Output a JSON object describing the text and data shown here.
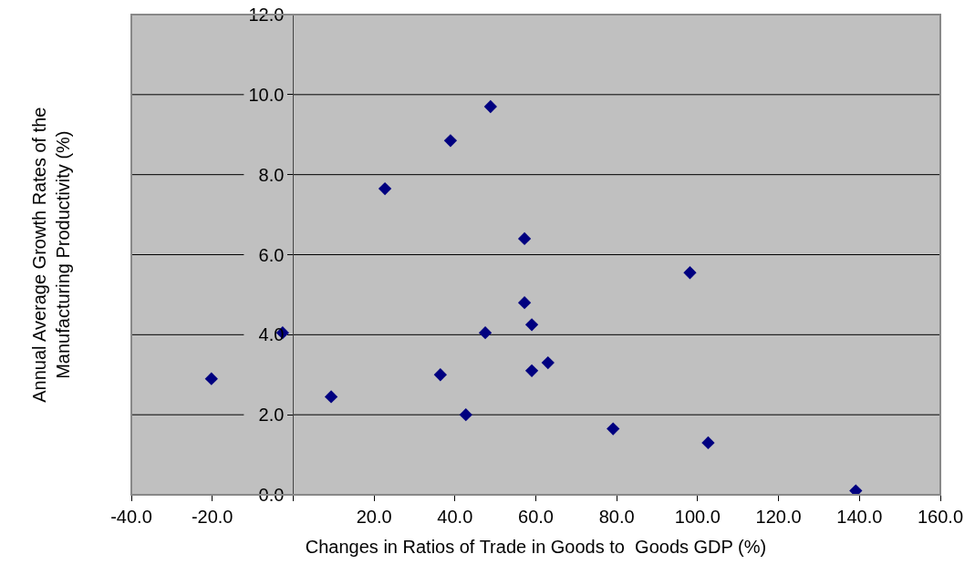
{
  "chart_data": {
    "type": "scatter",
    "xlabel": "Changes in Ratios of Trade in Goods to  Goods GDP (%)",
    "ylabel": "Annual Average Growth Rates of the\nManufacturing Productivity (%)",
    "x": [
      -20.2,
      -2.6,
      9.4,
      22.7,
      36.4,
      38.9,
      42.7,
      47.5,
      48.8,
      57.2,
      57.2,
      59.0,
      59.0,
      63.0,
      79.1,
      98.1,
      102.6,
      139.1
    ],
    "values": [
      2.9,
      4.05,
      2.45,
      7.65,
      3.0,
      8.85,
      2.0,
      4.05,
      9.7,
      6.4,
      4.8,
      4.25,
      3.1,
      3.3,
      1.65,
      5.55,
      1.3,
      0.1
    ],
    "color": "#000080",
    "marker": "diamond",
    "grid": "y",
    "xlim": [
      -40,
      160
    ],
    "xticks": [
      {
        "value": -40,
        "label": "-40.0"
      },
      {
        "value": -20,
        "label": "-20.0"
      },
      {
        "value": 0,
        "label": null
      },
      {
        "value": 20,
        "label": "20.0"
      },
      {
        "value": 40,
        "label": "40.0"
      },
      {
        "value": 60,
        "label": "60.0"
      },
      {
        "value": 80,
        "label": "80.0"
      },
      {
        "value": 100,
        "label": "100.0"
      },
      {
        "value": 120,
        "label": "120.0"
      },
      {
        "value": 140,
        "label": "140.0"
      },
      {
        "value": 160,
        "label": "160.0"
      }
    ],
    "ylim": [
      0,
      12
    ],
    "yticks": [
      {
        "value": 0,
        "label": "0.0"
      },
      {
        "value": 2,
        "label": "2.0"
      },
      {
        "value": 4,
        "label": "4.0"
      },
      {
        "value": 6,
        "label": "6.0"
      },
      {
        "value": 8,
        "label": "8.0"
      },
      {
        "value": 10,
        "label": "10.0"
      },
      {
        "value": 12,
        "label": "12.0"
      }
    ]
  }
}
